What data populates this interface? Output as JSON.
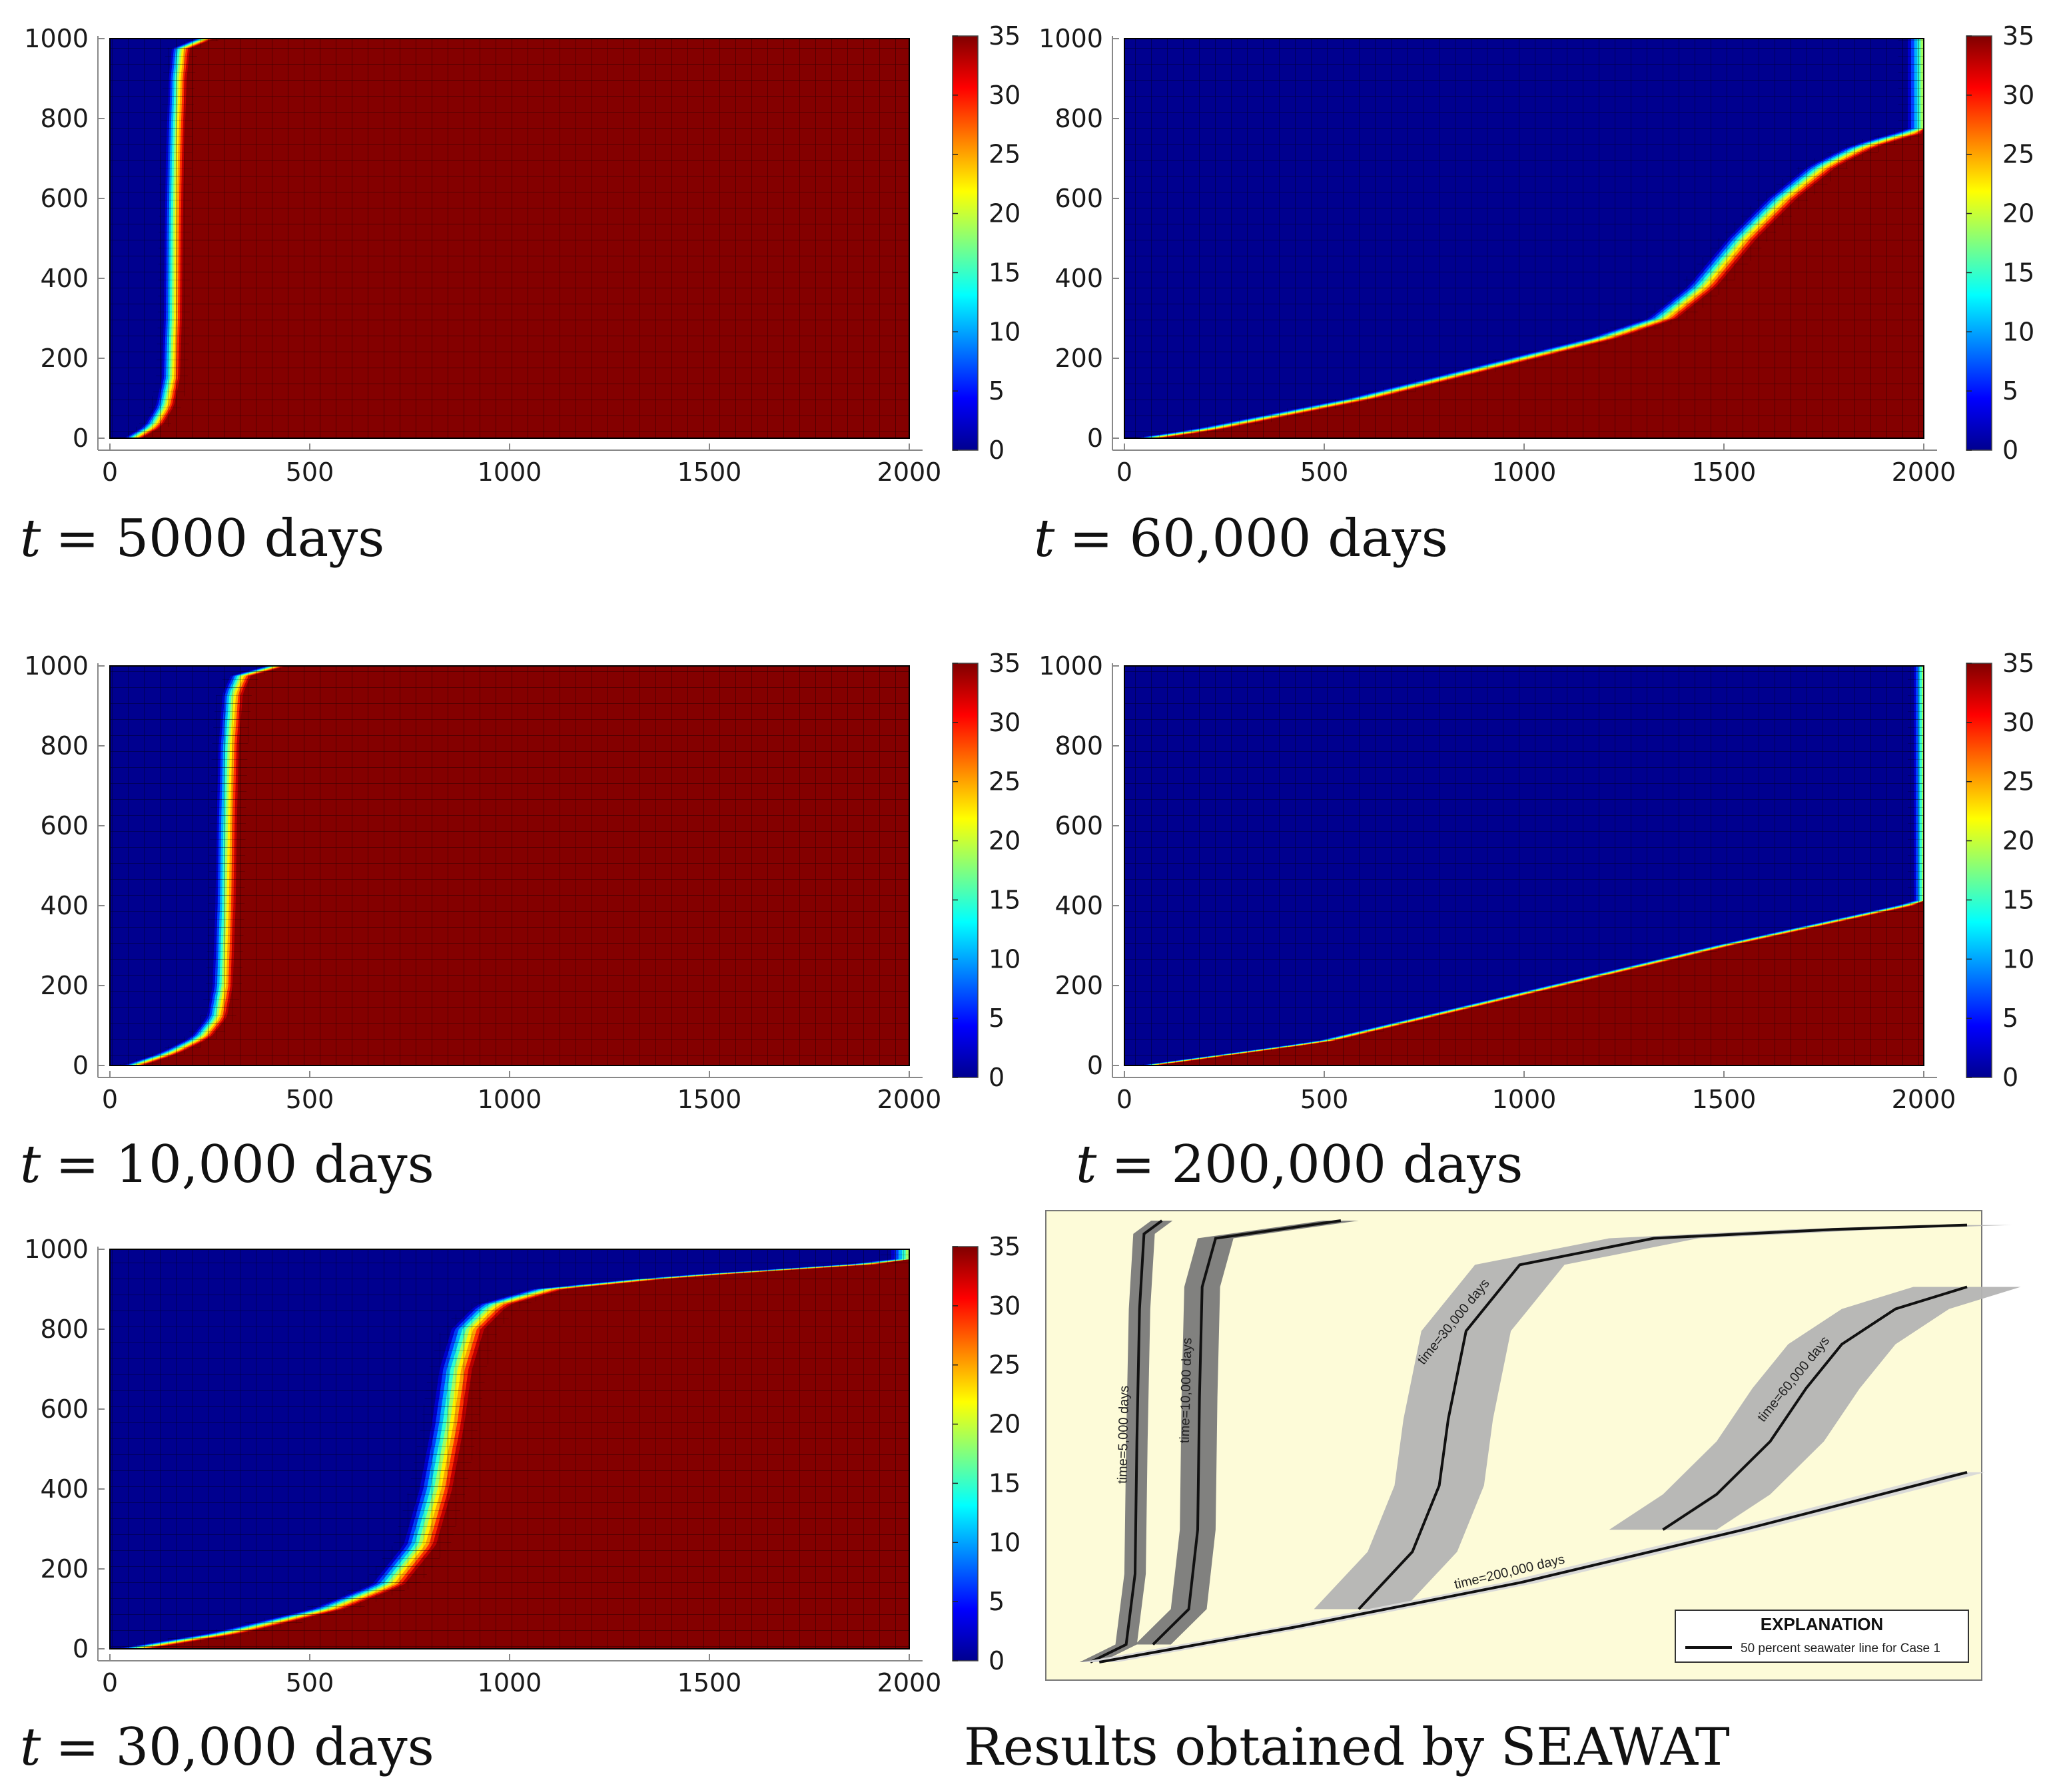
{
  "colormap": {
    "stops": [
      "#00008f",
      "#0000ff",
      "#00ffff",
      "#ffff00",
      "#ff0000",
      "#800000"
    ],
    "fresh_color": "#00008f",
    "salt_color": "#840000",
    "mesh_color": "#000000"
  },
  "chart_data": [
    {
      "id": "p5000",
      "type": "heatmap",
      "title": "t = 5000 days",
      "caption_var": "t",
      "caption_rest": "= 5000 days",
      "xlim": [
        0,
        2000
      ],
      "ylim": [
        0,
        1000
      ],
      "xticks": [
        "0",
        "500",
        "1000",
        "1500",
        "2000"
      ],
      "yticks": [
        "0",
        "200",
        "400",
        "600",
        "800",
        "1000"
      ],
      "colorbar": {
        "min": 0,
        "max": 35,
        "ticks": [
          "0",
          "5",
          "10",
          "15",
          "20",
          "25",
          "30",
          "35"
        ]
      },
      "interface": [
        [
          60,
          0
        ],
        [
          110,
          30
        ],
        [
          140,
          80
        ],
        [
          155,
          150
        ],
        [
          160,
          300
        ],
        [
          162,
          500
        ],
        [
          165,
          700
        ],
        [
          172,
          900
        ],
        [
          180,
          975
        ],
        [
          240,
          1000
        ]
      ],
      "width": 25
    },
    {
      "id": "p60000",
      "type": "heatmap",
      "title": "t = 60,000 days",
      "caption_var": "t",
      "caption_rest": "= 60,000 days",
      "xlim": [
        0,
        2000
      ],
      "ylim": [
        0,
        1000
      ],
      "xticks": [
        "0",
        "500",
        "1000",
        "1500",
        "2000"
      ],
      "yticks": [
        "0",
        "200",
        "400",
        "600",
        "800",
        "1000"
      ],
      "colorbar": {
        "min": 0,
        "max": 35,
        "ticks": [
          "0",
          "5",
          "10",
          "15",
          "20",
          "25",
          "30",
          "35"
        ]
      },
      "interface": [
        [
          60,
          0
        ],
        [
          200,
          20
        ],
        [
          400,
          60
        ],
        [
          600,
          100
        ],
        [
          800,
          150
        ],
        [
          1000,
          200
        ],
        [
          1200,
          250
        ],
        [
          1350,
          300
        ],
        [
          1450,
          380
        ],
        [
          1550,
          500
        ],
        [
          1650,
          600
        ],
        [
          1750,
          680
        ],
        [
          1850,
          730
        ],
        [
          1950,
          760
        ],
        [
          2000,
          770
        ]
      ],
      "width": 40
    },
    {
      "id": "p10000",
      "type": "heatmap",
      "title": "t = 10,000 days",
      "caption_var": "t",
      "caption_rest": "= 10,000 days",
      "xlim": [
        0,
        2000
      ],
      "ylim": [
        0,
        1000
      ],
      "xticks": [
        "0",
        "500",
        "1000",
        "1500",
        "2000"
      ],
      "yticks": [
        "0",
        "200",
        "400",
        "600",
        "800",
        "1000"
      ],
      "colorbar": {
        "min": 0,
        "max": 35,
        "ticks": [
          "0",
          "5",
          "10",
          "15",
          "20",
          "25",
          "30",
          "35"
        ]
      },
      "interface": [
        [
          60,
          0
        ],
        [
          150,
          30
        ],
        [
          230,
          70
        ],
        [
          270,
          120
        ],
        [
          285,
          200
        ],
        [
          292,
          400
        ],
        [
          295,
          600
        ],
        [
          300,
          800
        ],
        [
          310,
          930
        ],
        [
          330,
          975
        ],
        [
          420,
          1000
        ]
      ],
      "width": 28
    },
    {
      "id": "p200000",
      "type": "heatmap",
      "title": "t = 200,000 days",
      "caption_var": "t",
      "caption_rest": "= 200,000 days",
      "xlim": [
        0,
        2000
      ],
      "ylim": [
        0,
        1000
      ],
      "xticks": [
        "0",
        "500",
        "1000",
        "1500",
        "2000"
      ],
      "yticks": [
        "0",
        "200",
        "400",
        "600",
        "800",
        "1000"
      ],
      "colorbar": {
        "min": 0,
        "max": 35,
        "ticks": [
          "0",
          "5",
          "10",
          "15",
          "20",
          "25",
          "30",
          "35"
        ]
      },
      "interface": [
        [
          60,
          0
        ],
        [
          500,
          60
        ],
        [
          1000,
          180
        ],
        [
          1500,
          300
        ],
        [
          2000,
          410
        ]
      ],
      "width": 25
    },
    {
      "id": "p30000",
      "type": "heatmap",
      "title": "t = 30,000 days",
      "caption_var": "t",
      "caption_rest": "= 30,000 days",
      "xlim": [
        0,
        2000
      ],
      "ylim": [
        0,
        1000
      ],
      "xticks": [
        "0",
        "500",
        "1000",
        "1500",
        "2000"
      ],
      "yticks": [
        "0",
        "200",
        "400",
        "600",
        "800",
        "1000"
      ],
      "colorbar": {
        "min": 0,
        "max": 35,
        "ticks": [
          "0",
          "5",
          "10",
          "15",
          "20",
          "25",
          "30",
          "35"
        ]
      },
      "interface": [
        [
          60,
          0
        ],
        [
          300,
          40
        ],
        [
          550,
          100
        ],
        [
          700,
          160
        ],
        [
          780,
          260
        ],
        [
          820,
          400
        ],
        [
          850,
          560
        ],
        [
          870,
          700
        ],
        [
          900,
          800
        ],
        [
          960,
          860
        ],
        [
          1100,
          900
        ],
        [
          1400,
          930
        ],
        [
          1700,
          950
        ],
        [
          2000,
          970
        ]
      ],
      "width": 45
    }
  ],
  "seawat": {
    "caption": "Results obtained by SEAWAT",
    "background": "#fdfbd8",
    "curves": [
      {
        "label": "time=5,000 days",
        "points": [
          [
            0.02,
            0.0
          ],
          [
            0.06,
            0.04
          ],
          [
            0.07,
            0.2
          ],
          [
            0.072,
            0.5
          ],
          [
            0.075,
            0.8
          ],
          [
            0.08,
            0.97
          ],
          [
            0.1,
            1.0
          ]
        ],
        "band": 0.012
      },
      {
        "label": "time=10,000 days",
        "points": [
          [
            0.09,
            0.04
          ],
          [
            0.13,
            0.12
          ],
          [
            0.14,
            0.3
          ],
          [
            0.142,
            0.6
          ],
          [
            0.145,
            0.85
          ],
          [
            0.16,
            0.96
          ],
          [
            0.3,
            1.0
          ]
        ],
        "band": 0.02
      },
      {
        "label": "time=30,000 days",
        "points": [
          [
            0.32,
            0.12
          ],
          [
            0.38,
            0.25
          ],
          [
            0.41,
            0.4
          ],
          [
            0.42,
            0.55
          ],
          [
            0.44,
            0.75
          ],
          [
            0.5,
            0.9
          ],
          [
            0.65,
            0.96
          ],
          [
            0.85,
            0.98
          ],
          [
            1.0,
            0.99
          ]
        ],
        "band": 0.05
      },
      {
        "label": "time=60,000 days",
        "points": [
          [
            0.66,
            0.3
          ],
          [
            0.72,
            0.38
          ],
          [
            0.78,
            0.5
          ],
          [
            0.82,
            0.62
          ],
          [
            0.86,
            0.72
          ],
          [
            0.92,
            0.8
          ],
          [
            1.0,
            0.85
          ]
        ],
        "band": 0.06
      },
      {
        "label": "time=200,000 days",
        "points": [
          [
            0.03,
            0.0
          ],
          [
            0.25,
            0.08
          ],
          [
            0.5,
            0.18
          ],
          [
            0.75,
            0.3
          ],
          [
            1.0,
            0.43
          ]
        ],
        "band": 0.02
      }
    ],
    "explanation_title": "EXPLANATION",
    "explanation_item": "50 percent seawater line for Case 1"
  }
}
